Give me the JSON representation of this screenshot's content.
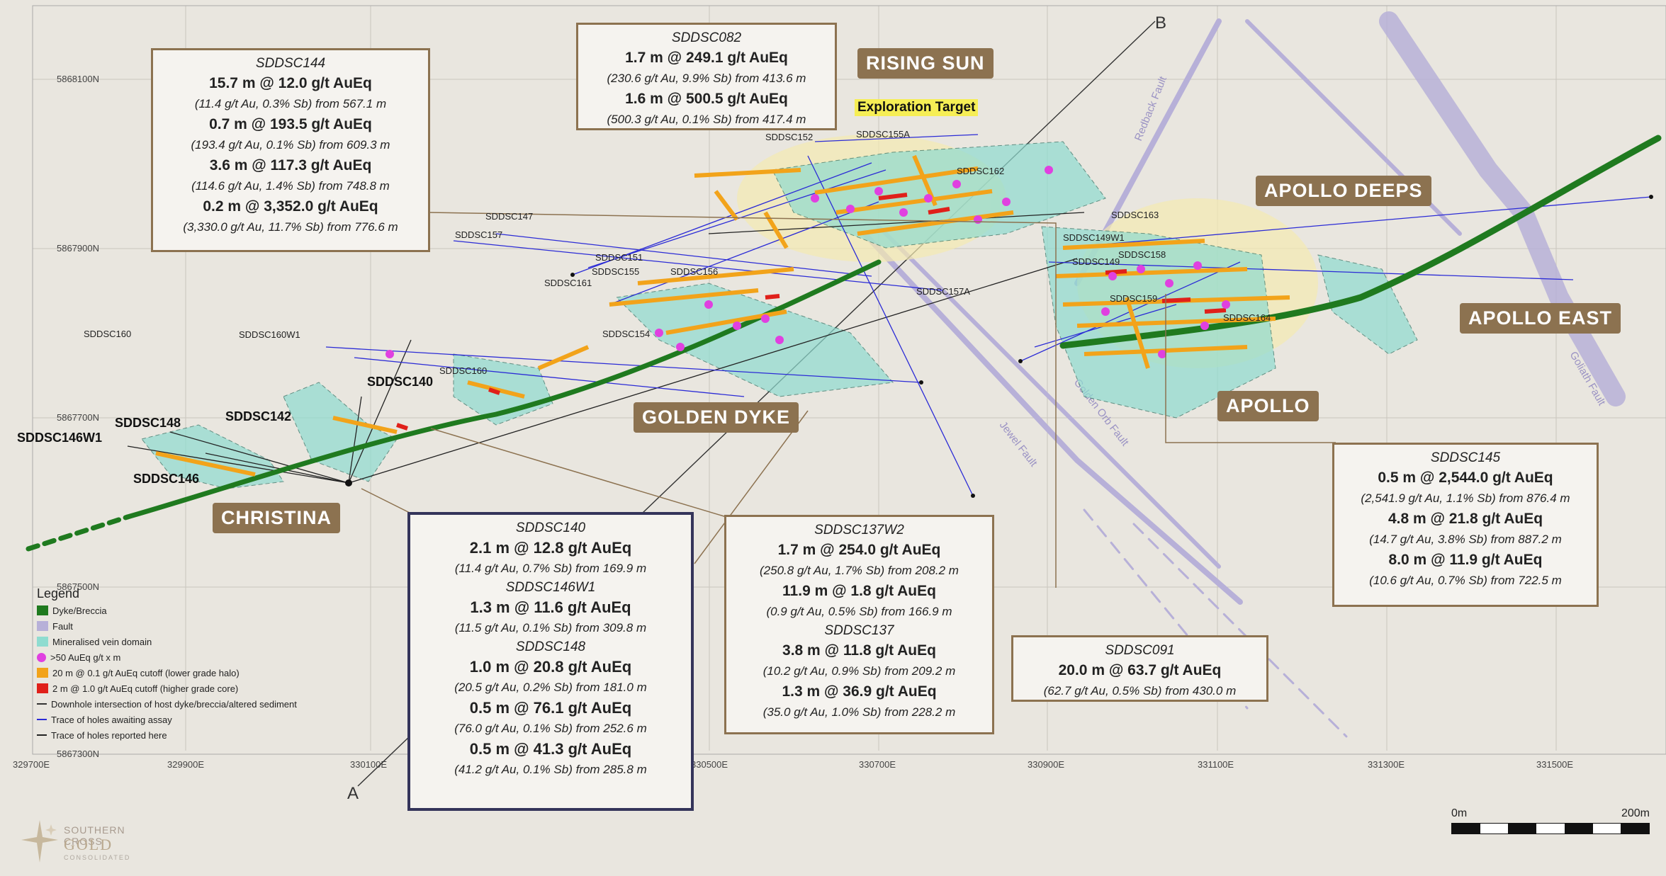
{
  "colors": {
    "dyke": "#1f7a1f",
    "fault": "#b7b0d8",
    "vein_domain": "#8fdcd0",
    "assay_high": "#e040e0",
    "halo_orange": "#f2a31a",
    "core_red": "#e0201a",
    "callout_border": "#8c7250",
    "prospect_bg": "#8c7250",
    "hole_awaiting": "#2b2bd6",
    "hole_reported": "#222222"
  },
  "northings": [
    "5868100N",
    "5867900N",
    "5867700N",
    "5867500N",
    "5867300N"
  ],
  "eastings": [
    "329700E",
    "329900E",
    "330100E",
    "330500E",
    "330700E",
    "330900E",
    "331100E",
    "331300E",
    "331500E"
  ],
  "section_labels": {
    "a": "A",
    "b": "B"
  },
  "fault_labels": [
    "Redback Fault",
    "Golden Orb Fault",
    "Jewel Fault",
    "Goliath Fault"
  ],
  "prospects": {
    "rising_sun": "RISING SUN",
    "exploration_target": "Exploration Target",
    "apollo_deeps": "APOLLO DEEPS",
    "apollo_east": "APOLLO EAST",
    "apollo": "APOLLO",
    "golden_dyke": "GOLDEN DYKE",
    "christina": "CHRISTINA"
  },
  "hole_labels": {
    "sddsc152": "SDDSC152",
    "sddsc155a": "SDDSC155A",
    "sddsc162": "SDDSC162",
    "sddsc147": "SDDSC147",
    "sddsc157": "SDDSC157",
    "sddsc151": "SDDSC151",
    "sddsc155": "SDDSC155",
    "sddsc161": "SDDSC161",
    "sddsc156": "SDDSC156",
    "sddsc157a": "SDDSC157A",
    "sddsc163": "SDDSC163",
    "sddsc149w1": "SDDSC149W1",
    "sddsc149": "SDDSC149",
    "sddsc158": "SDDSC158",
    "sddsc159": "SDDSC159",
    "sddsc164": "SDDSC164",
    "sddsc160": "SDDSC160",
    "sddsc160w1": "SDDSC160W1",
    "sddsc154": "SDDSC154",
    "sddsc160b": "SDDSC160",
    "sddsc140": "SDDSC140",
    "sddsc142": "SDDSC142",
    "sddsc148": "SDDSC148",
    "sddsc146w1": "SDDSC146W1",
    "sddsc146": "SDDSC146"
  },
  "callouts": {
    "sddsc144": {
      "hole": "SDDSC144",
      "lines": [
        {
          "main": "15.7 m @ 12.0 g/t AuEq",
          "sub": "(11.4 g/t Au, 0.3% Sb) from 567.1 m"
        },
        {
          "main": "0.7 m @ 193.5 g/t AuEq",
          "sub": "(193.4 g/t Au, 0.1% Sb) from 609.3 m"
        },
        {
          "main": "3.6 m @ 117.3 g/t AuEq",
          "sub": "(114.6 g/t Au, 1.4% Sb) from 748.8 m"
        },
        {
          "main": "0.2 m @ 3,352.0 g/t AuEq",
          "sub": "(3,330.0 g/t Au, 11.7% Sb) from 776.6 m"
        }
      ]
    },
    "sddsc082": {
      "hole": "SDDSC082",
      "lines": [
        {
          "main": "1.7 m @ 249.1 g/t AuEq",
          "sub": "(230.6 g/t Au, 9.9% Sb) from 413.6 m"
        },
        {
          "main": "1.6 m @ 500.5 g/t AuEq",
          "sub": "(500.3 g/t Au, 0.1% Sb) from 417.4 m"
        }
      ]
    },
    "sddsc145": {
      "hole": "SDDSC145",
      "lines": [
        {
          "main": "0.5 m @ 2,544.0 g/t AuEq",
          "sub": "(2,541.9 g/t Au, 1.1% Sb) from 876.4 m"
        },
        {
          "main": "4.8 m @ 21.8 g/t AuEq",
          "sub": "(14.7 g/t Au, 3.8% Sb) from 887.2 m"
        },
        {
          "main": "8.0 m @ 11.9 g/t AuEq",
          "sub": "(10.6 g/t Au, 0.7% Sb) from 722.5 m"
        }
      ]
    },
    "sddsc091": {
      "hole": "SDDSC091",
      "lines": [
        {
          "main": "20.0 m @ 63.7 g/t AuEq",
          "sub": "(62.7 g/t Au, 0.5% Sb) from 430.0 m"
        }
      ]
    },
    "sddsc137w2": {
      "hole": "SDDSC137W2",
      "lines": [
        {
          "main": "1.7 m @ 254.0 g/t AuEq",
          "sub": "(250.8 g/t Au, 1.7% Sb) from 208.2 m"
        },
        {
          "main": "11.9 m @ 1.8 g/t AuEq",
          "sub": "(0.9 g/t Au, 0.5% Sb) from 166.9 m"
        }
      ],
      "hole2": "SDDSC137",
      "lines2": [
        {
          "main": "3.8 m @ 11.8 g/t AuEq",
          "sub": "(10.2 g/t Au, 0.9% Sb) from 209.2 m"
        },
        {
          "main": "1.3 m @ 36.9 g/t AuEq",
          "sub": "(35.0 g/t Au, 1.0% Sb) from 228.2 m"
        }
      ]
    },
    "sddsc140": {
      "hole": "SDDSC140",
      "lines": [
        {
          "main": "2.1 m @ 12.8 g/t AuEq",
          "sub": "(11.4 g/t Au, 0.7% Sb) from 169.9 m"
        }
      ],
      "hole2": "SDDSC146W1",
      "lines2": [
        {
          "main": "1.3 m @ 11.6 g/t AuEq",
          "sub": "(11.5 g/t Au, 0.1% Sb) from 309.8 m"
        }
      ],
      "hole3": "SDDSC148",
      "lines3": [
        {
          "main": "1.0 m @ 20.8 g/t AuEq",
          "sub": "(20.5 g/t Au, 0.2% Sb) from 181.0 m"
        },
        {
          "main": "0.5 m @ 76.1 g/t AuEq",
          "sub": "(76.0 g/t Au, 0.1% Sb) from 252.6 m"
        },
        {
          "main": "0.5 m @ 41.3 g/t AuEq",
          "sub": "(41.2 g/t Au, 0.1% Sb) from 285.8 m"
        }
      ]
    }
  },
  "legend": {
    "title": "Legend",
    "items": [
      {
        "label": "Dyke/Breccia",
        "kind": "swatch",
        "color": "#1f7a1f"
      },
      {
        "label": "Fault",
        "kind": "swatch",
        "color": "#b7b0d8"
      },
      {
        "label": "Mineralised vein domain",
        "kind": "swatch",
        "color": "#8fdcd0"
      },
      {
        "label": ">50 AuEq g/t x m",
        "kind": "dot",
        "color": "#e040e0"
      },
      {
        "label": "20 m @ 0.1 g/t AuEq cutoff (lower grade halo)",
        "kind": "swatch",
        "color": "#f2a31a"
      },
      {
        "label": "2 m @ 1.0 g/t AuEq cutoff (higher grade core)",
        "kind": "swatch",
        "color": "#e0201a"
      },
      {
        "label": "Downhole intersection of host dyke/breccia/altered sediment",
        "kind": "line",
        "color": "#333333"
      },
      {
        "label": "Trace of holes awaiting assay",
        "kind": "line",
        "color": "#2b2bd6"
      },
      {
        "label": "Trace of holes reported here",
        "kind": "line",
        "color": "#222222"
      }
    ]
  },
  "logo": {
    "line1": "SOUTHERN CROSS",
    "line2": "GOLD",
    "line3": "CONSOLIDATED"
  },
  "scale": {
    "start": "0m",
    "end": "200m"
  }
}
